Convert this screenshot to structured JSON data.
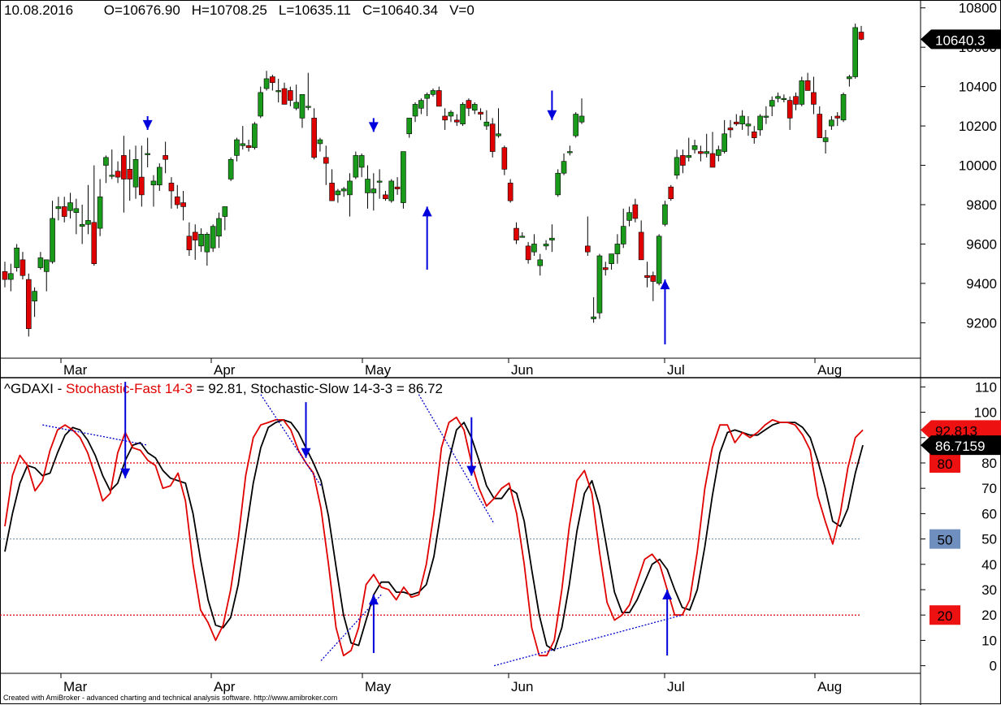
{
  "header": {
    "date": "10.08.2016",
    "open": "O=10676.90",
    "high": "H=10708.25",
    "low": "L=10635.11",
    "close": "C=10640.34",
    "volume": "V=0"
  },
  "indicator_header": {
    "symbol": "^GDAXI - ",
    "fast_label": "Stochastic-Fast 14-3",
    "fast_value": " = 92.81, ",
    "slow_label": "Stochastic-Slow 14-3-3",
    "slow_value": " = 86.72"
  },
  "footer": "Created with AmiBroker - advanced charting and technical analysis software. http://www.amibroker.com",
  "colors": {
    "up": "#1a9a1a",
    "down": "#e00000",
    "fast": "#e00000",
    "slow": "#000000",
    "arrow": "#0000dd",
    "trend": "#0000cc",
    "level": "#e00000",
    "mid": "#6688aa"
  },
  "chart_data": [
    {
      "type": "candlestick",
      "yticks": [
        "9200",
        "9400",
        "9600",
        "9800",
        "10000",
        "10200",
        "10400",
        "10600",
        "10800"
      ],
      "ylim": [
        9020,
        10840
      ],
      "months": [
        "Mar",
        "Apr",
        "May",
        "Jun",
        "Jul",
        "Aug"
      ],
      "last_price_label": "10640.3",
      "candles": [
        [
          9460,
          9510,
          9380,
          9420
        ],
        [
          9420,
          9500,
          9360,
          9450
        ],
        [
          9480,
          9600,
          9460,
          9580
        ],
        [
          9520,
          9560,
          9420,
          9440
        ],
        [
          9420,
          9450,
          9130,
          9170
        ],
        [
          9310,
          9380,
          9230,
          9360
        ],
        [
          9480,
          9560,
          9470,
          9530
        ],
        [
          9460,
          9520,
          9360,
          9520
        ],
        [
          9510,
          9820,
          9500,
          9730
        ],
        [
          9780,
          9840,
          9720,
          9790
        ],
        [
          9790,
          9840,
          9710,
          9740
        ],
        [
          9770,
          9860,
          9730,
          9810
        ],
        [
          9760,
          9830,
          9650,
          9780
        ],
        [
          9690,
          9800,
          9600,
          9700
        ],
        [
          9700,
          9900,
          9650,
          9720
        ],
        [
          9710,
          10000,
          9490,
          9500
        ],
        [
          9680,
          9930,
          9640,
          9840
        ],
        [
          10000,
          10050,
          9910,
          10040
        ],
        [
          9950,
          10080,
          9930,
          9950
        ],
        [
          9970,
          10020,
          9910,
          9940
        ],
        [
          10050,
          10150,
          9760,
          9930
        ],
        [
          9980,
          10080,
          9820,
          9930
        ],
        [
          9890,
          10100,
          9830,
          10030
        ],
        [
          9940,
          10100,
          9790,
          9850
        ],
        [
          10060,
          10140,
          9990,
          10060
        ],
        [
          9900,
          9950,
          9790,
          9920
        ],
        [
          9900,
          10010,
          9870,
          9990
        ],
        [
          10050,
          10120,
          9960,
          10030
        ],
        [
          9910,
          9940,
          9780,
          9870
        ],
        [
          9840,
          9900,
          9780,
          9800
        ],
        [
          9810,
          9870,
          9720,
          9790
        ],
        [
          9640,
          9710,
          9540,
          9570
        ],
        [
          9660,
          9700,
          9520,
          9620
        ],
        [
          9590,
          9680,
          9560,
          9650
        ],
        [
          9560,
          9660,
          9490,
          9650
        ],
        [
          9580,
          9700,
          9560,
          9690
        ],
        [
          9640,
          9760,
          9580,
          9730
        ],
        [
          9740,
          9790,
          9670,
          9790
        ],
        [
          9930,
          10040,
          9920,
          10030
        ],
        [
          10050,
          10140,
          10020,
          10130
        ],
        [
          10100,
          10200,
          10080,
          10110
        ],
        [
          10100,
          10130,
          10070,
          10090
        ],
        [
          10090,
          10220,
          10080,
          10210
        ],
        [
          10250,
          10400,
          10240,
          10370
        ],
        [
          10390,
          10480,
          10380,
          10440
        ],
        [
          10450,
          10460,
          10380,
          10420
        ],
        [
          10380,
          10440,
          10320,
          10380
        ],
        [
          10390,
          10420,
          10310,
          10310
        ],
        [
          10380,
          10400,
          10300,
          10330
        ],
        [
          10290,
          10410,
          10280,
          10320
        ],
        [
          10240,
          10360,
          10190,
          10360
        ],
        [
          10300,
          10470,
          10280,
          10300
        ],
        [
          10240,
          10290,
          10030,
          10040
        ],
        [
          10110,
          10140,
          10070,
          10130
        ],
        [
          10040,
          10100,
          9900,
          10010
        ],
        [
          9910,
          9980,
          9820,
          9820
        ],
        [
          9850,
          9880,
          9810,
          9870
        ],
        [
          9870,
          9890,
          9840,
          9880
        ],
        [
          9850,
          9960,
          9740,
          9920
        ],
        [
          9940,
          10070,
          9930,
          10050
        ],
        [
          9990,
          10060,
          9940,
          10050
        ],
        [
          9860,
          10000,
          9780,
          9930
        ],
        [
          9860,
          9960,
          9770,
          9880
        ],
        [
          9920,
          9980,
          9830,
          9920
        ],
        [
          9850,
          9870,
          9820,
          9830
        ],
        [
          9820,
          9930,
          9810,
          9920
        ],
        [
          9890,
          9940,
          9850,
          9880
        ],
        [
          9810,
          10070,
          9780,
          10070
        ],
        [
          10160,
          10240,
          10140,
          10240
        ],
        [
          10250,
          10320,
          10220,
          10310
        ],
        [
          10290,
          10340,
          10260,
          10330
        ],
        [
          10340,
          10370,
          10250,
          10360
        ],
        [
          10360,
          10390,
          10350,
          10380
        ],
        [
          10380,
          10400,
          10300,
          10300
        ],
        [
          10250,
          10290,
          10180,
          10230
        ],
        [
          10250,
          10280,
          10220,
          10270
        ],
        [
          10230,
          10260,
          10200,
          10220
        ],
        [
          10210,
          10320,
          10200,
          10310
        ],
        [
          10330,
          10340,
          10250,
          10290
        ],
        [
          10280,
          10320,
          10260,
          10310
        ],
        [
          10270,
          10290,
          10230,
          10260
        ],
        [
          10200,
          10280,
          10180,
          10220
        ],
        [
          10210,
          10240,
          10040,
          10070
        ],
        [
          10150,
          10290,
          10140,
          10160
        ],
        [
          10090,
          10100,
          9950,
          9980
        ],
        [
          9910,
          9930,
          9810,
          9820
        ],
        [
          9680,
          9710,
          9600,
          9620
        ],
        [
          9640,
          9660,
          9640,
          9640
        ],
        [
          9590,
          9610,
          9500,
          9520
        ],
        [
          9560,
          9650,
          9540,
          9600
        ],
        [
          9490,
          9550,
          9440,
          9520
        ],
        [
          9590,
          9620,
          9570,
          9600
        ],
        [
          9620,
          9700,
          9560,
          9630
        ],
        [
          9850,
          9980,
          9840,
          9960
        ],
        [
          9960,
          10060,
          9950,
          10020
        ],
        [
          10070,
          10100,
          10050,
          10070
        ],
        [
          10150,
          10270,
          10140,
          10260
        ],
        [
          10220,
          10340,
          10210,
          10250
        ],
        [
          9590,
          9740,
          9540,
          9560
        ],
        [
          9220,
          9330,
          9200,
          9230
        ],
        [
          9250,
          9550,
          9220,
          9540
        ],
        [
          9480,
          9510,
          9440,
          9470
        ],
        [
          9500,
          9550,
          9470,
          9550
        ],
        [
          9550,
          9650,
          9500,
          9600
        ],
        [
          9600,
          9780,
          9580,
          9690
        ],
        [
          9720,
          9790,
          9690,
          9760
        ],
        [
          9800,
          9830,
          9710,
          9730
        ],
        [
          9660,
          9720,
          9520,
          9520
        ],
        [
          9440,
          9510,
          9380,
          9430
        ],
        [
          9440,
          9460,
          9310,
          9410
        ],
        [
          9400,
          9650,
          9390,
          9640
        ],
        [
          9700,
          9820,
          9690,
          9800
        ],
        [
          9890,
          9900,
          9820,
          9830
        ],
        [
          9950,
          10080,
          9930,
          10040
        ],
        [
          10050,
          10080,
          9960,
          10000
        ],
        [
          10040,
          10140,
          10020,
          10050
        ],
        [
          10080,
          10130,
          10060,
          10100
        ],
        [
          10070,
          10100,
          10020,
          10060
        ],
        [
          10060,
          10160,
          10040,
          10070
        ],
        [
          10060,
          10170,
          9990,
          9990
        ],
        [
          10050,
          10100,
          10020,
          10080
        ],
        [
          10070,
          10230,
          10060,
          10160
        ],
        [
          10190,
          10230,
          10140,
          10180
        ],
        [
          10220,
          10260,
          10200,
          10210
        ],
        [
          10210,
          10280,
          10180,
          10250
        ],
        [
          10200,
          10250,
          10150,
          10210
        ],
        [
          10170,
          10200,
          10110,
          10140
        ],
        [
          10180,
          10260,
          10150,
          10250
        ],
        [
          10250,
          10300,
          10210,
          10250
        ],
        [
          10300,
          10350,
          10250,
          10330
        ],
        [
          10340,
          10370,
          10320,
          10350
        ],
        [
          10340,
          10360,
          10320,
          10340
        ],
        [
          10330,
          10350,
          10180,
          10240
        ],
        [
          10350,
          10370,
          10280,
          10310
        ],
        [
          10310,
          10450,
          10300,
          10430
        ],
        [
          10430,
          10470,
          10380,
          10380
        ],
        [
          10370,
          10450,
          10260,
          10310
        ],
        [
          10260,
          10300,
          10140,
          10140
        ],
        [
          10120,
          10180,
          10060,
          10140
        ],
        [
          10200,
          10250,
          10180,
          10230
        ],
        [
          10250,
          10270,
          10200,
          10240
        ],
        [
          10230,
          10370,
          10220,
          10360
        ],
        [
          10440,
          10460,
          10400,
          10450
        ],
        [
          10450,
          10720,
          10440,
          10700
        ],
        [
          10676.9,
          10708.25,
          10635.11,
          10640.34
        ]
      ],
      "arrows": [
        {
          "bar": 24,
          "dir": "down",
          "from": 10250,
          "to": 10180
        },
        {
          "bar": 62,
          "dir": "down",
          "from": 10240,
          "to": 10170
        },
        {
          "bar": 71,
          "dir": "up",
          "from": 9470,
          "to": 9790
        },
        {
          "bar": 92,
          "dir": "down",
          "from": 10380,
          "to": 10230
        },
        {
          "bar": 111,
          "dir": "up",
          "from": 9090,
          "to": 9420
        }
      ]
    },
    {
      "type": "line",
      "title": "^GDAXI - Stochastic-Fast 14-3 = 92.81, Stochastic-Slow 14-3-3 = 86.72",
      "yticks": [
        "0",
        "10",
        "20",
        "30",
        "40",
        "50",
        "60",
        "70",
        "80",
        "90",
        "100",
        "110"
      ],
      "ylim": [
        -3,
        113
      ],
      "levels": [
        20,
        50,
        80
      ],
      "level_labels": [
        "20",
        "50",
        "80"
      ],
      "fast_value_label": "92.813",
      "slow_value_label": "86.7159",
      "months": [
        "Mar",
        "Apr",
        "May",
        "Jun",
        "Jul",
        "Aug"
      ],
      "series": [
        {
          "name": "Stochastic-Fast 14-3",
          "values": [
            55,
            75,
            83,
            79,
            69,
            73,
            85,
            93,
            95,
            93,
            90,
            84,
            75,
            65,
            68,
            84,
            92,
            86,
            85,
            81,
            79,
            70,
            71,
            76,
            65,
            40,
            22,
            17,
            10,
            16,
            30,
            50,
            75,
            90,
            95,
            96,
            97,
            97,
            93,
            85,
            80,
            76,
            62,
            40,
            15,
            4,
            6,
            15,
            32,
            36,
            31,
            30,
            26,
            31,
            27,
            28,
            40,
            60,
            86,
            96,
            98,
            93,
            80,
            70,
            63,
            66,
            70,
            72,
            60,
            40,
            15,
            4,
            4,
            10,
            30,
            55,
            73,
            77,
            68,
            45,
            25,
            18,
            20,
            24,
            33,
            42,
            44,
            40,
            30,
            20,
            20,
            26,
            45,
            70,
            86,
            95,
            95,
            88,
            92,
            90,
            92,
            95,
            97,
            96,
            96,
            95,
            91,
            85,
            67,
            57,
            48,
            60,
            78,
            90,
            93
          ]
        },
        {
          "name": "Stochastic-Slow 14-3-3",
          "values": [
            45,
            60,
            72,
            79,
            78,
            75,
            76,
            84,
            91,
            94,
            93,
            89,
            83,
            75,
            69,
            72,
            81,
            87,
            88,
            84,
            82,
            77,
            74,
            73,
            72,
            60,
            42,
            26,
            16,
            15,
            19,
            32,
            52,
            72,
            86,
            94,
            96,
            97,
            96,
            92,
            86,
            80,
            73,
            59,
            39,
            20,
            9,
            8,
            18,
            28,
            33,
            33,
            29,
            29,
            28,
            29,
            32,
            43,
            62,
            81,
            93,
            96,
            90,
            81,
            71,
            66,
            66,
            70,
            68,
            57,
            38,
            20,
            8,
            6,
            15,
            32,
            53,
            68,
            73,
            63,
            46,
            29,
            21,
            21,
            26,
            33,
            40,
            42,
            38,
            30,
            23,
            22,
            30,
            47,
            67,
            84,
            92,
            93,
            92,
            91,
            91,
            93,
            95,
            96,
            96,
            96,
            94,
            90,
            81,
            70,
            57,
            55,
            62,
            76,
            87
          ]
        }
      ],
      "arrows": [
        {
          "x": 16,
          "dir": "down",
          "from": 112,
          "to": 74
        },
        {
          "x": 40,
          "dir": "down",
          "from": 104,
          "to": 82
        },
        {
          "x": 49,
          "dir": "up",
          "from": 5,
          "to": 28
        },
        {
          "x": 62,
          "dir": "down",
          "from": 98,
          "to": 75
        },
        {
          "x": 88,
          "dir": "up",
          "from": 4,
          "to": 30
        }
      ],
      "trendlines": [
        {
          "x1": 5,
          "y1": 95,
          "x2": 19,
          "y2": 87
        },
        {
          "x1": 34,
          "y1": 107,
          "x2": 42,
          "y2": 71
        },
        {
          "x1": 42,
          "y1": 2,
          "x2": 50,
          "y2": 28
        },
        {
          "x1": 55,
          "y1": 107,
          "x2": 65,
          "y2": 56
        },
        {
          "x1": 65,
          "y1": 0,
          "x2": 90,
          "y2": 20
        }
      ]
    }
  ]
}
